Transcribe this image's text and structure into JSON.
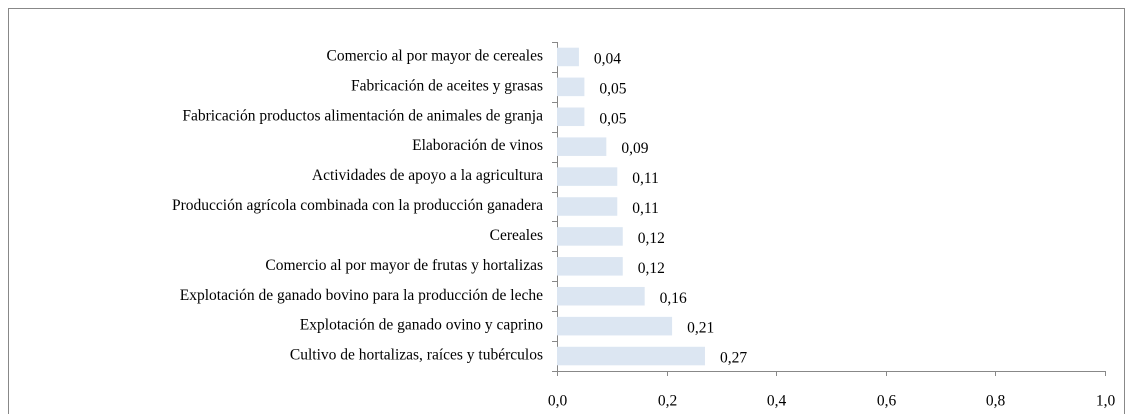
{
  "chart_data": {
    "type": "hbar",
    "categories": [
      "Comercio al por mayor de cereales",
      "Fabricación de aceites y grasas",
      "Fabricación productos alimentación de animales de granja",
      "Elaboración de vinos",
      "Actividades de apoyo a la agricultura",
      "Producción agrícola combinada con la producción ganadera",
      "Cereales",
      "Comercio al por mayor de frutas y hortalizas",
      "Explotación de ganado bovino para la producción de leche",
      "Explotación de ganado ovino y caprino",
      "Cultivo de hortalizas, raíces y tubérculos"
    ],
    "values": [
      0.04,
      0.05,
      0.05,
      0.09,
      0.11,
      0.11,
      0.12,
      0.12,
      0.16,
      0.21,
      0.27
    ],
    "value_labels": [
      "0,04",
      "0,05",
      "0,05",
      "0,09",
      "0,11",
      "0,11",
      "0,12",
      "0,12",
      "0,16",
      "0,21",
      "0,27"
    ],
    "color": "#dce6f2",
    "xlim": [
      0,
      1
    ],
    "xticks": [
      {
        "value": 0,
        "label": "0,0"
      },
      {
        "value": 0.2,
        "label": "0,2"
      },
      {
        "value": 0.4,
        "label": "0,4"
      },
      {
        "value": 0.6,
        "label": "0,6"
      },
      {
        "value": 0.8,
        "label": "0,8"
      },
      {
        "value": 1,
        "label": "1,0"
      }
    ]
  }
}
